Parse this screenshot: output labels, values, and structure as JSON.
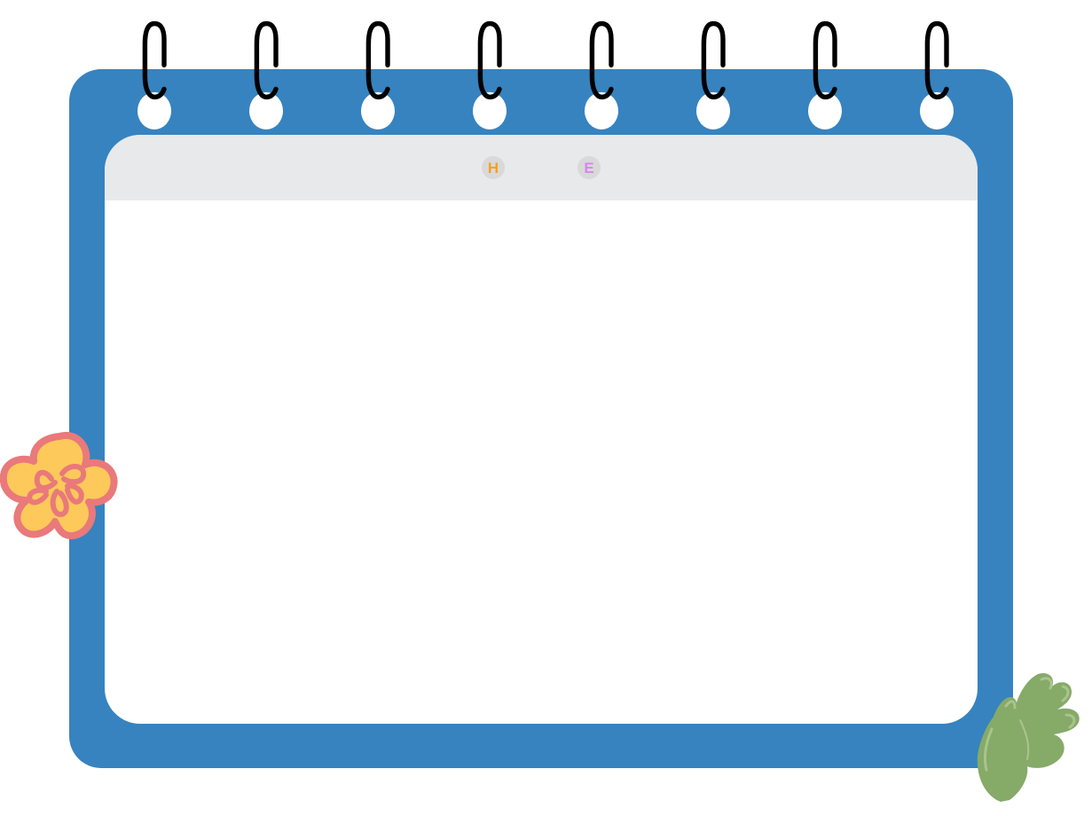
{
  "colors": {
    "board": "#3683c0",
    "paper_header": "#e8e9eb",
    "paper": "#ffffff",
    "ring": "#000000",
    "tab_circle": "#d9d9d9",
    "flower_fill": "#fcc95a",
    "flower_outline": "#e9797a",
    "leaf": "#86aa68",
    "leaf_highlight": "#a9c48c"
  },
  "tabs": [
    {
      "label": "H",
      "color": "#f7a11b"
    },
    {
      "label": "E",
      "color": "#d885f0"
    }
  ],
  "decorations": {
    "flower_icon": "flower-icon",
    "leaf_icon": "leaf-icon",
    "ring_icon": "binder-ring-icon"
  }
}
